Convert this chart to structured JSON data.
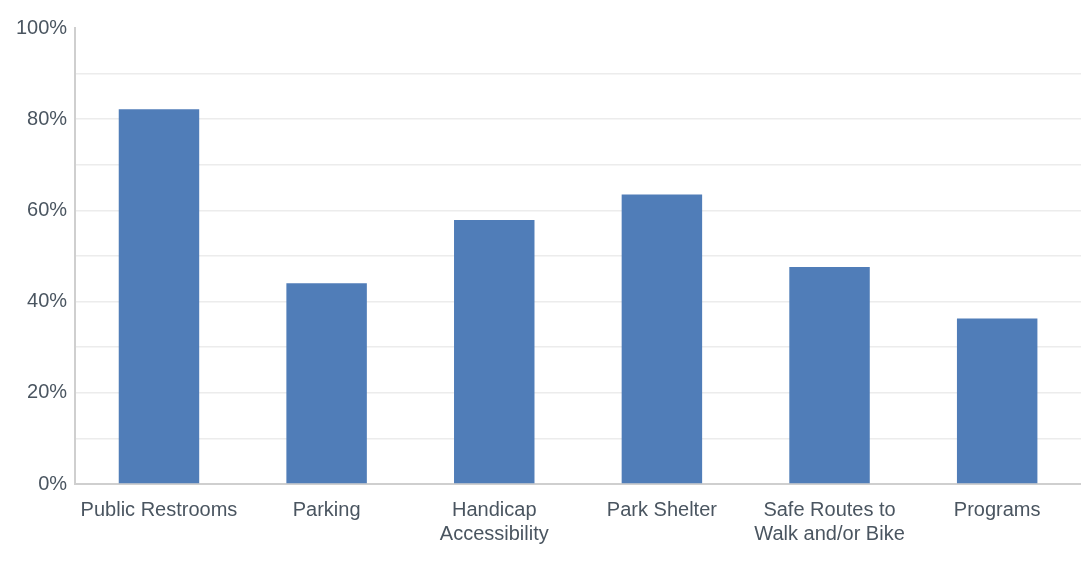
{
  "chart_data": {
    "type": "bar",
    "categories": [
      "Public Restrooms",
      "Parking",
      "Handicap Accessibility",
      "Park Shelter",
      "Safe Routes to Walk and/or Bike",
      "Programs"
    ],
    "values": [
      82.2,
      44,
      57.9,
      63.5,
      47.6,
      36.3
    ],
    "color": "#507db8",
    "ylim": [
      0,
      100
    ],
    "yticks": [
      {
        "value": 0,
        "label": "0%"
      },
      {
        "value": 10,
        "label": null
      },
      {
        "value": 20,
        "label": "20%"
      },
      {
        "value": 30,
        "label": null
      },
      {
        "value": 40,
        "label": "40%"
      },
      {
        "value": 50,
        "label": null
      },
      {
        "value": 60,
        "label": "60%"
      },
      {
        "value": 70,
        "label": null
      },
      {
        "value": 80,
        "label": "80%"
      },
      {
        "value": 90,
        "label": null
      },
      {
        "value": 100,
        "label": "100%"
      }
    ],
    "grid": "y",
    "legend": false
  }
}
